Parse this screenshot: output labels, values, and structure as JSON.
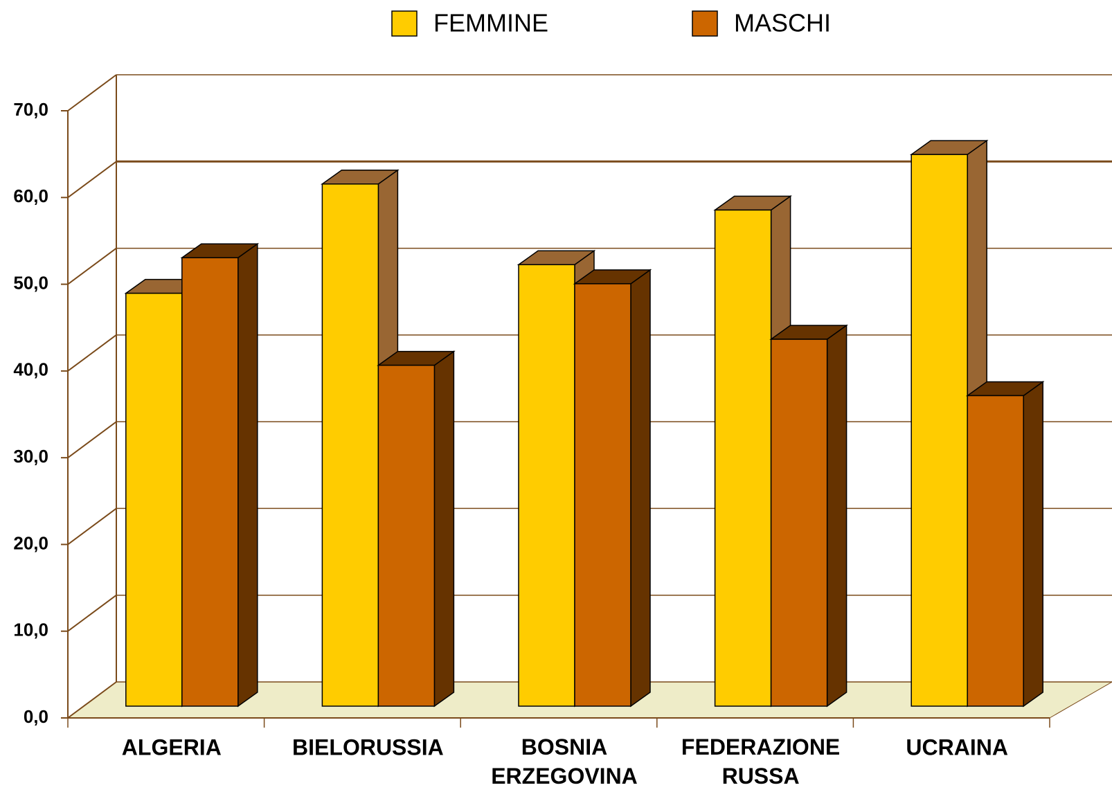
{
  "chart_data": {
    "type": "bar3d",
    "categories": [
      "ALGERIA",
      "BIELORUSSIA",
      "BOSNIA ERZEGOVINA",
      "FEDERAZIONE RUSSA",
      "UCRAINA"
    ],
    "series": [
      {
        "name": "FEMMINE",
        "color": "#ffcc00",
        "side_color": "#996633",
        "values": [
          47.6,
          60.2,
          50.9,
          57.2,
          63.6
        ]
      },
      {
        "name": "MASCHI",
        "color": "#cc6600",
        "side_color": "#663300",
        "values": [
          51.7,
          39.3,
          48.7,
          42.3,
          35.8
        ]
      }
    ],
    "ylim": [
      0,
      70
    ],
    "yticks": [
      {
        "value": 0,
        "label": "0,0"
      },
      {
        "value": 10,
        "label": "10,0"
      },
      {
        "value": 20,
        "label": "20,0"
      },
      {
        "value": 30,
        "label": "30,0"
      },
      {
        "value": 40,
        "label": "40,0"
      },
      {
        "value": 50,
        "label": "50,0"
      },
      {
        "value": 60,
        "label": "60,0"
      },
      {
        "value": 70,
        "label": "70,0"
      }
    ],
    "grid": true,
    "legend": "top"
  }
}
